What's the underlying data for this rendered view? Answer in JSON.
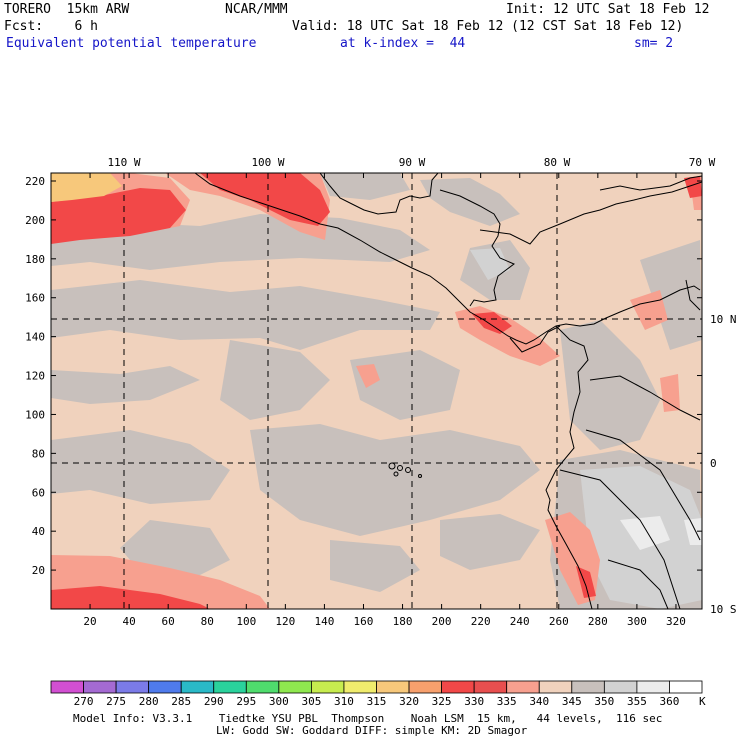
{
  "header": {
    "model": "TORERO  15km ARW",
    "center": "NCAR/MMM",
    "init": "Init: 12 UTC Sat 18 Feb 12",
    "fcst": "Fcst:    6 h",
    "valid": "Valid: 18 UTC Sat 18 Feb 12 (12 CST Sat 18 Feb 12)",
    "field": "Equivalent potential temperature",
    "level": "at k-index =  44",
    "smooth": "sm= 2"
  },
  "map": {
    "top_lon_labels": [
      "110 W",
      "100 W",
      "90 W",
      "80 W",
      "70 W"
    ],
    "right_lat_labels": [
      "10 N",
      "0",
      "10 S"
    ],
    "left_ticks": [
      "220",
      "200",
      "180",
      "160",
      "140",
      "120",
      "100",
      "80",
      "60",
      "40",
      "20"
    ],
    "bottom_ticks": [
      "20",
      "40",
      "60",
      "80",
      "100",
      "120",
      "140",
      "160",
      "180",
      "200",
      "220",
      "240",
      "260",
      "280",
      "300",
      "320"
    ]
  },
  "colorbar": {
    "labels": [
      "270",
      "275",
      "280",
      "285",
      "290",
      "295",
      "300",
      "305",
      "310",
      "315",
      "320",
      "325",
      "330",
      "335",
      "340",
      "345",
      "350",
      "355",
      "360"
    ],
    "unit": "K",
    "colors": [
      "#d24fd2",
      "#a46ad2",
      "#7b7be8",
      "#4f7bec",
      "#2ab9c7",
      "#2ad29c",
      "#4fdc6d",
      "#8fe84f",
      "#c7ec4f",
      "#f0ec6d",
      "#f7c87b",
      "#f7a06d",
      "#f24848",
      "#e84f4f",
      "#f7a08f",
      "#f0d2bd",
      "#c8c0bc",
      "#d2d2d2",
      "#ececec",
      "#ffffff"
    ]
  },
  "footer": {
    "line1": "Model Info: V3.3.1    Tiedtke YSU PBL  Thompson    Noah LSM  15 km,   44 levels,  116 sec",
    "line2": "LW: Godd SW: Goddard DIFF: simple KM: 2D Smagor"
  },
  "colors": {
    "background_field": "#f0d2bd",
    "gray_field": "#c8c0bc",
    "light_gray": "#d2d2d2",
    "salmon": "#f7a08f",
    "red": "#f24848",
    "orange": "#f7c87b"
  }
}
